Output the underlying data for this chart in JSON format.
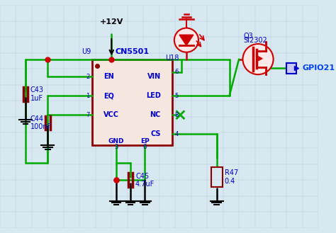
{
  "background_color": "#d8e8f0",
  "grid_color": "#b0c8d8",
  "wire_color_green": "#00aa00",
  "wire_color_red": "#cc0000",
  "component_color_dark_red": "#8b0000",
  "text_color_blue": "#0000cc",
  "ic_label": "CN5501",
  "ic_ref": "U9",
  "mosfet_ref": "Q3",
  "mosfet_label": "SI2302",
  "diode_ref": "U18",
  "c43_label": "C43\n1uF",
  "c44_label": "C44\n100nF",
  "c45_label": "C45\n4.7uF",
  "r47_label": "R47\n0.4",
  "gpio_label": "GPIO21",
  "vcc_label": "+12V"
}
